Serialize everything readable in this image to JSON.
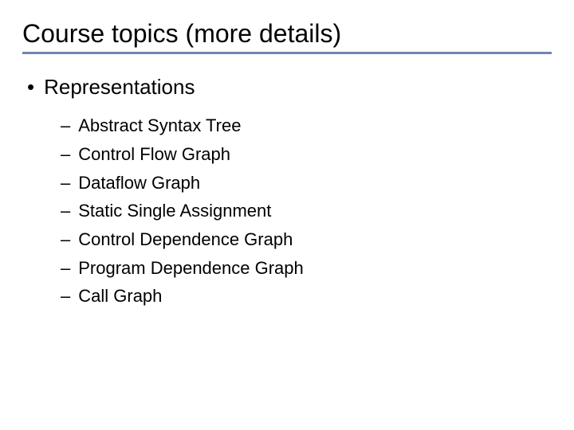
{
  "slide": {
    "title": "Course topics (more details)",
    "divider_color": "#7084b0",
    "background_color": "#ffffff",
    "title_fontsize": 32,
    "body_fontsize_l1": 26,
    "body_fontsize_l2": 22,
    "text_color": "#000000",
    "bullet_l1_marker": "•",
    "bullet_l2_marker": "–",
    "items": [
      {
        "label": "Representations",
        "children": [
          {
            "label": "Abstract Syntax Tree"
          },
          {
            "label": "Control Flow Graph"
          },
          {
            "label": "Dataflow Graph"
          },
          {
            "label": "Static Single Assignment"
          },
          {
            "label": "Control Dependence Graph"
          },
          {
            "label": "Program Dependence Graph"
          },
          {
            "label": "Call Graph"
          }
        ]
      }
    ]
  }
}
